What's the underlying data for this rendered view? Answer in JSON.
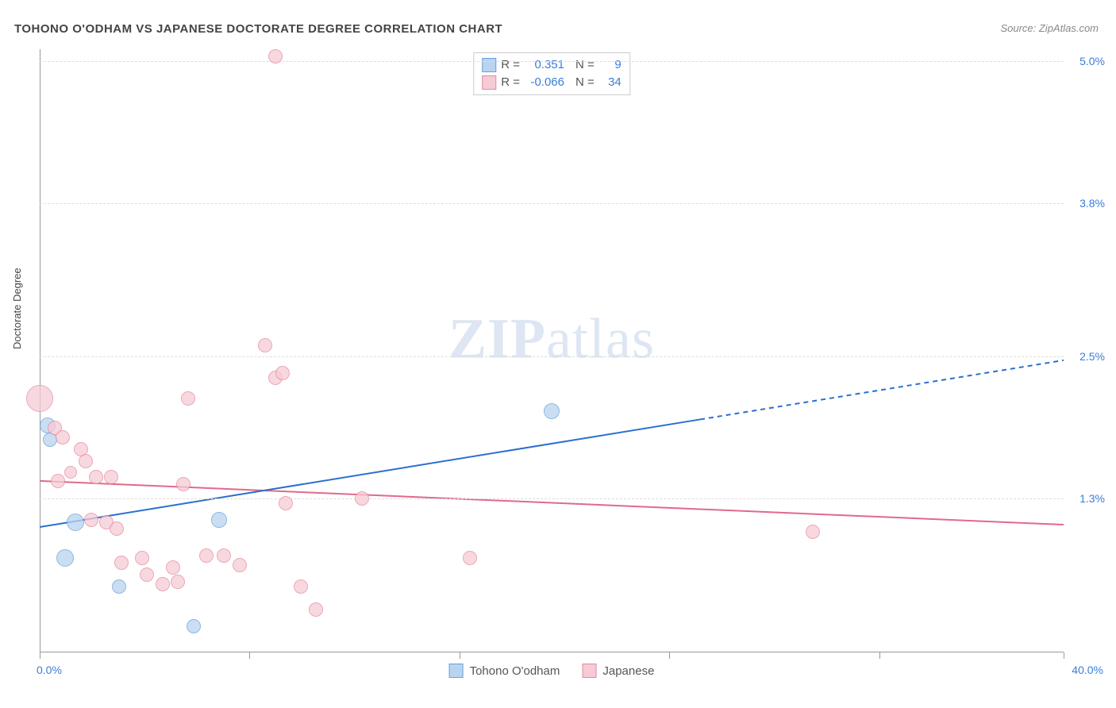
{
  "title": "TOHONO O'ODHAM VS JAPANESE DOCTORATE DEGREE CORRELATION CHART",
  "source": "Source: ZipAtlas.com",
  "watermark": {
    "zip": "ZIP",
    "atlas": "atlas"
  },
  "y_axis_label": "Doctorate Degree",
  "chart": {
    "type": "scatter",
    "background_color": "#ffffff",
    "grid_color": "#dddddd",
    "axis_color": "#999999",
    "xlim": [
      0,
      40
    ],
    "ylim": [
      0,
      5.1
    ],
    "x_ticks_pct": [
      0,
      8.2,
      16.4,
      24.6,
      32.8,
      40
    ],
    "x_tick_labels": {
      "min": "0.0%",
      "max": "40.0%"
    },
    "y_gridlines": [
      1.3,
      2.5,
      3.8,
      5.0
    ],
    "y_tick_labels": [
      "1.3%",
      "2.5%",
      "3.8%",
      "5.0%"
    ],
    "series": [
      {
        "name": "Tohono O'odham",
        "fill": "#b9d4f0",
        "stroke": "#6a9fd8",
        "r_value": "0.351",
        "n_value": "9",
        "line": {
          "x1_pct": 0,
          "y1_pct": 1.06,
          "x2_pct": 25.8,
          "y2_pct": 1.97,
          "x3_pct": 40,
          "y3_pct": 2.47,
          "color": "#2b6fd0",
          "width": 2
        },
        "points": [
          {
            "x": 0.3,
            "y": 1.92,
            "r": 10
          },
          {
            "x": 0.4,
            "y": 1.8,
            "r": 9
          },
          {
            "x": 1.0,
            "y": 0.8,
            "r": 11
          },
          {
            "x": 1.4,
            "y": 1.1,
            "r": 11
          },
          {
            "x": 3.1,
            "y": 0.56,
            "r": 9
          },
          {
            "x": 7.0,
            "y": 1.12,
            "r": 10
          },
          {
            "x": 6.0,
            "y": 0.22,
            "r": 9
          },
          {
            "x": 20.0,
            "y": 2.04,
            "r": 10
          }
        ]
      },
      {
        "name": "Japanese",
        "fill": "#f6cbd5",
        "stroke": "#e58aa0",
        "r_value": "-0.066",
        "n_value": "34",
        "line": {
          "x1_pct": 0,
          "y1_pct": 1.45,
          "x2_pct": 40,
          "y2_pct": 1.08,
          "color": "#e06a8a",
          "width": 2
        },
        "points": [
          {
            "x": 0.0,
            "y": 2.15,
            "r": 17
          },
          {
            "x": 0.6,
            "y": 1.9,
            "r": 9
          },
          {
            "x": 0.9,
            "y": 1.82,
            "r": 9
          },
          {
            "x": 0.7,
            "y": 1.45,
            "r": 9
          },
          {
            "x": 1.6,
            "y": 1.72,
            "r": 9
          },
          {
            "x": 1.8,
            "y": 1.62,
            "r": 9
          },
          {
            "x": 1.2,
            "y": 1.52,
            "r": 8
          },
          {
            "x": 2.2,
            "y": 1.48,
            "r": 9
          },
          {
            "x": 2.0,
            "y": 1.12,
            "r": 9
          },
          {
            "x": 2.8,
            "y": 1.48,
            "r": 9
          },
          {
            "x": 2.6,
            "y": 1.1,
            "r": 9
          },
          {
            "x": 3.0,
            "y": 1.05,
            "r": 9
          },
          {
            "x": 3.2,
            "y": 0.76,
            "r": 9
          },
          {
            "x": 4.0,
            "y": 0.8,
            "r": 9
          },
          {
            "x": 4.2,
            "y": 0.66,
            "r": 9
          },
          {
            "x": 4.8,
            "y": 0.58,
            "r": 9
          },
          {
            "x": 5.2,
            "y": 0.72,
            "r": 9
          },
          {
            "x": 5.4,
            "y": 0.6,
            "r": 9
          },
          {
            "x": 5.6,
            "y": 1.42,
            "r": 9
          },
          {
            "x": 5.8,
            "y": 2.15,
            "r": 9
          },
          {
            "x": 6.5,
            "y": 0.82,
            "r": 9
          },
          {
            "x": 7.2,
            "y": 0.82,
            "r": 9
          },
          {
            "x": 7.8,
            "y": 0.74,
            "r": 9
          },
          {
            "x": 8.8,
            "y": 2.6,
            "r": 9
          },
          {
            "x": 9.2,
            "y": 2.32,
            "r": 9
          },
          {
            "x": 9.5,
            "y": 2.36,
            "r": 9
          },
          {
            "x": 9.6,
            "y": 1.26,
            "r": 9
          },
          {
            "x": 9.2,
            "y": 5.04,
            "r": 9
          },
          {
            "x": 10.2,
            "y": 0.56,
            "r": 9
          },
          {
            "x": 10.8,
            "y": 0.36,
            "r": 9
          },
          {
            "x": 12.6,
            "y": 1.3,
            "r": 9
          },
          {
            "x": 16.8,
            "y": 0.8,
            "r": 9
          },
          {
            "x": 30.2,
            "y": 1.02,
            "r": 9
          }
        ]
      }
    ],
    "legend_top": {
      "r_label": "R =",
      "n_label": "N ="
    },
    "legend_bottom": [
      {
        "label": "Tohono O'odham",
        "fill": "#b9d4f0",
        "stroke": "#6a9fd8"
      },
      {
        "label": "Japanese",
        "fill": "#f6cbd5",
        "stroke": "#e58aa0"
      }
    ]
  }
}
